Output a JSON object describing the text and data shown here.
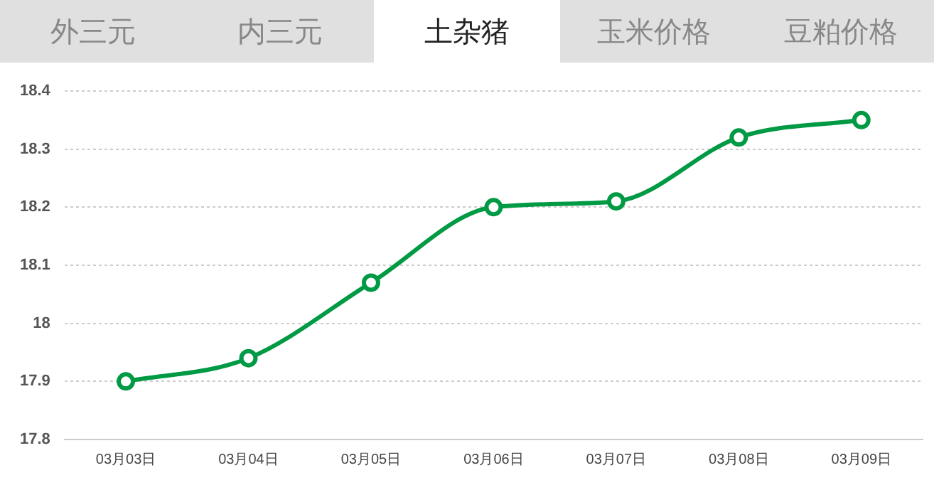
{
  "chart_data": {
    "type": "line",
    "title": "土杂猪",
    "annotations": [
      "外三元",
      "内三元",
      "玉米价格",
      "豆粕价格"
    ],
    "categories": [
      "03月03日",
      "03月04日",
      "03月05日",
      "03月06日",
      "03月07日",
      "03月08日",
      "03月09日"
    ],
    "series": [
      {
        "color": "#009944",
        "values": [
          17.9,
          17.94,
          18.07,
          18.2,
          18.21,
          18.32,
          18.35
        ]
      }
    ],
    "ylim": [
      17.8,
      18.4
    ],
    "yticks": [
      17.8,
      17.9,
      18.1,
      18.2,
      18.3,
      18.4,
      {
        "value": 18,
        "label": "18"
      }
    ],
    "grid": "y",
    "legend": false,
    "marker": "circle",
    "line_style": "solid"
  }
}
